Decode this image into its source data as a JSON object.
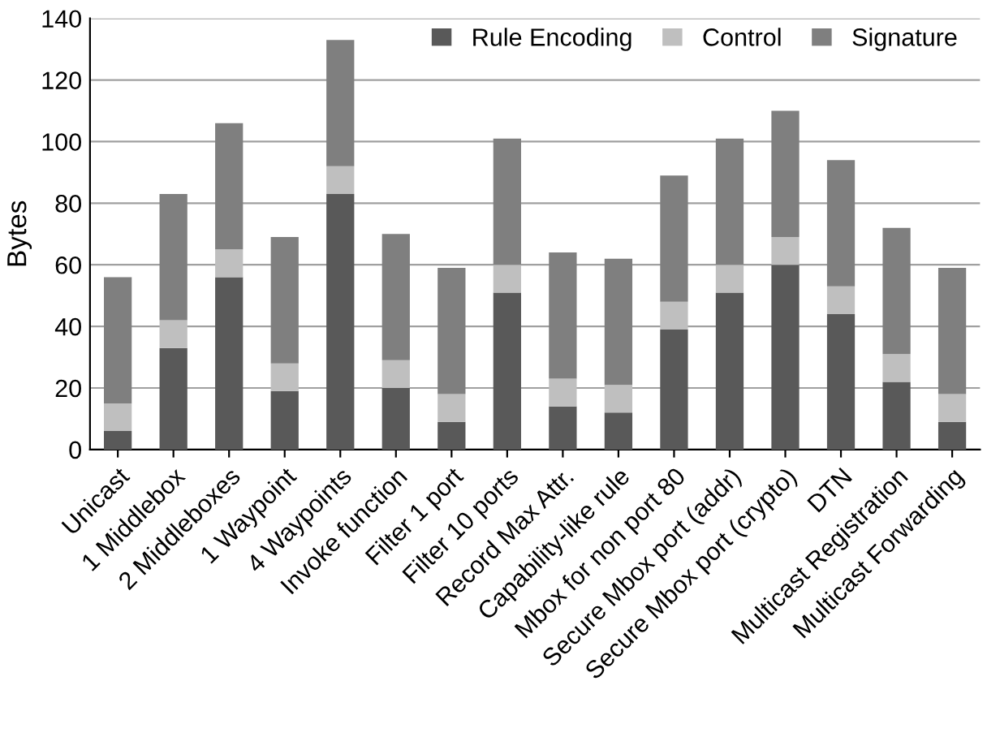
{
  "chart_data": {
    "type": "bar",
    "stacked": true,
    "ylabel": "Bytes",
    "categories": [
      "Unicast",
      "1 Middlebox",
      "2 Middleboxes",
      "1 Waypoint",
      "4 Waypoints",
      "Invoke function",
      "Filter 1 port",
      "Filter 10 ports",
      "Record Max Attr.",
      "Capability-like rule",
      "Mbox for non port 80",
      "Secure Mbox port (addr)",
      "Secure Mbox port (crypto)",
      "DTN",
      "Multicast Registration",
      "Multicast Forwarding"
    ],
    "series": [
      {
        "name": "Rule Encoding",
        "color": "#595959",
        "values": [
          6,
          33,
          56,
          19,
          83,
          20,
          9,
          51,
          14,
          12,
          39,
          51,
          60,
          44,
          22,
          9
        ]
      },
      {
        "name": "Control",
        "color": "#bfbfbf",
        "values": [
          9,
          9,
          9,
          9,
          9,
          9,
          9,
          9,
          9,
          9,
          9,
          9,
          9,
          9,
          9,
          9
        ]
      },
      {
        "name": "Signature",
        "color": "#7f7f7f",
        "values": [
          41,
          41,
          41,
          41,
          41,
          41,
          41,
          41,
          41,
          41,
          41,
          41,
          41,
          41,
          41,
          41
        ]
      }
    ],
    "ylim": [
      0,
      140
    ],
    "yticks": [
      0,
      20,
      40,
      60,
      80,
      100,
      120,
      140
    ],
    "grid": "y",
    "legend": "top right"
  }
}
